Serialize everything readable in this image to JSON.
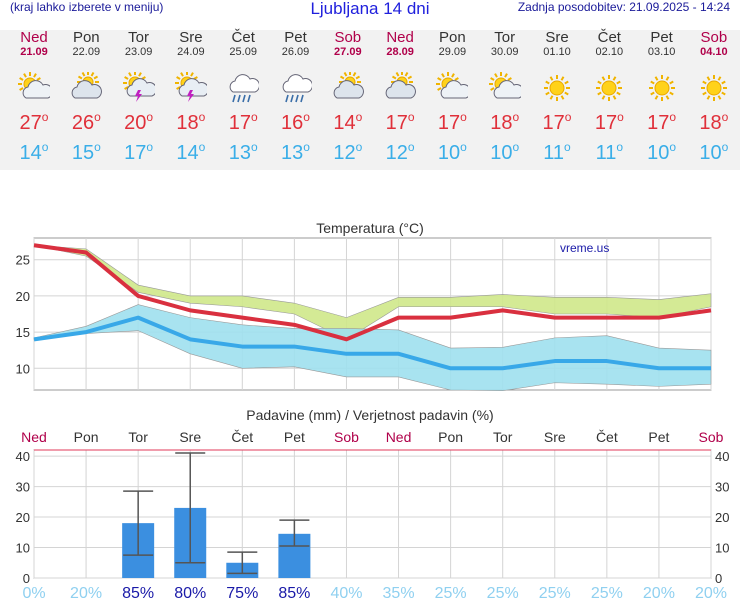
{
  "header": {
    "note": "(kraj lahko izberete v meniju)",
    "title": "Ljubljana 14 dni",
    "updated": "Zadnja posodobitev: 21.09.2025 - 14:24"
  },
  "days": [
    {
      "name": "Ned",
      "date": "21.09",
      "icon": "partly-cloudy-icon",
      "tmax": "27",
      "tmin": "14",
      "weekend": true
    },
    {
      "name": "Pon",
      "date": "22.09",
      "icon": "cloudy-sun-icon",
      "tmax": "26",
      "tmin": "15",
      "weekend": false
    },
    {
      "name": "Tor",
      "date": "23.09",
      "icon": "thunderstorm-sun-icon",
      "tmax": "20",
      "tmin": "17",
      "weekend": false
    },
    {
      "name": "Sre",
      "date": "24.09",
      "icon": "thunderstorm-sun-icon",
      "tmax": "18",
      "tmin": "14",
      "weekend": false
    },
    {
      "name": "Čet",
      "date": "25.09",
      "icon": "rain-cloud-icon",
      "tmax": "17",
      "tmin": "13",
      "weekend": false
    },
    {
      "name": "Pet",
      "date": "26.09",
      "icon": "rain-cloud-icon",
      "tmax": "16",
      "tmin": "13",
      "weekend": false
    },
    {
      "name": "Sob",
      "date": "27.09",
      "icon": "cloudy-sun-icon",
      "tmax": "14",
      "tmin": "12",
      "weekend": true
    },
    {
      "name": "Ned",
      "date": "28.09",
      "icon": "cloudy-sun-icon",
      "tmax": "17",
      "tmin": "12",
      "weekend": true
    },
    {
      "name": "Pon",
      "date": "29.09",
      "icon": "partly-cloudy-icon",
      "tmax": "17",
      "tmin": "10",
      "weekend": false
    },
    {
      "name": "Tor",
      "date": "30.09",
      "icon": "partly-cloudy-icon",
      "tmax": "18",
      "tmin": "10",
      "weekend": false
    },
    {
      "name": "Sre",
      "date": "01.10",
      "icon": "sun-icon",
      "tmax": "17",
      "tmin": "11",
      "weekend": false
    },
    {
      "name": "Čet",
      "date": "02.10",
      "icon": "sun-icon",
      "tmax": "17",
      "tmin": "11",
      "weekend": false
    },
    {
      "name": "Pet",
      "date": "03.10",
      "icon": "sun-icon",
      "tmax": "17",
      "tmin": "10",
      "weekend": false
    },
    {
      "name": "Sob",
      "date": "04.10",
      "icon": "sun-icon",
      "tmax": "18",
      "tmin": "10",
      "weekend": true
    }
  ],
  "colors": {
    "max_line": "#d9303f",
    "min_line": "#38a8e8",
    "max_band": "#cfe88a",
    "min_band": "#9fe0ee",
    "overlap_band": "#7fcf7a",
    "precip_bar": "#3b8fe0",
    "weekend": "#b0004a",
    "prob_strong": "#1a1aa8",
    "prob_weak": "#8fd0f0"
  },
  "chart_data": [
    {
      "type": "line",
      "title": "Temperatura (°C)",
      "watermark": "vreme.us",
      "categories": [
        "21.09",
        "22.09",
        "23.09",
        "24.09",
        "25.09",
        "26.09",
        "27.09",
        "28.09",
        "29.09",
        "30.09",
        "01.10",
        "02.10",
        "03.10",
        "04.10"
      ],
      "ylim": [
        7,
        28
      ],
      "yticks": [
        10,
        15,
        20,
        25
      ],
      "grid": true,
      "series": [
        {
          "values": [
            27,
            26,
            20,
            18,
            17,
            16,
            14,
            17,
            17,
            18,
            17,
            17,
            17,
            18
          ],
          "band_low": [
            27,
            25.5,
            20.5,
            19,
            18.5,
            17.5,
            14,
            18.5,
            18.5,
            18.5,
            17.5,
            17.5,
            17,
            18.5
          ],
          "band_high": [
            27,
            26.5,
            21.5,
            20,
            20,
            19,
            17,
            19.8,
            19.8,
            20.2,
            19.8,
            19.8,
            19.5,
            20.3
          ]
        },
        {
          "values": [
            14,
            15,
            17,
            14,
            13,
            13,
            12,
            12,
            10,
            10,
            11,
            11,
            10,
            10
          ],
          "band_low": [
            14,
            14.8,
            15.2,
            12,
            10,
            10.2,
            8.8,
            8.8,
            7,
            6.9,
            8,
            7.8,
            7.5,
            7.8
          ],
          "band_high": [
            14.2,
            15.8,
            18.8,
            17,
            16,
            15.5,
            15.5,
            15.3,
            12.8,
            12.9,
            14.2,
            14.5,
            12.8,
            12.5
          ]
        }
      ]
    },
    {
      "type": "bar",
      "title": "Padavine (mm) / Verjetnost padavin (%)",
      "categories": [
        "Ned",
        "Pon",
        "Tor",
        "Sre",
        "Čet",
        "Pet",
        "Sob",
        "Ned",
        "Pon",
        "Tor",
        "Sre",
        "Čet",
        "Pet",
        "Sob"
      ],
      "weekend": [
        true,
        false,
        false,
        false,
        false,
        false,
        true,
        true,
        false,
        false,
        false,
        false,
        false,
        true
      ],
      "values": [
        0,
        0,
        18,
        23,
        5,
        14.5,
        0,
        0,
        0,
        0,
        0,
        0,
        0,
        0
      ],
      "err_low": [
        null,
        null,
        7.5,
        5,
        1.5,
        10.5,
        null,
        null,
        null,
        null,
        null,
        null,
        null,
        null
      ],
      "err_high": [
        null,
        null,
        28.5,
        41,
        8.5,
        19,
        null,
        null,
        null,
        null,
        null,
        null,
        null,
        null
      ],
      "probability": [
        "0%",
        "20%",
        "85%",
        "80%",
        "75%",
        "85%",
        "40%",
        "35%",
        "25%",
        "25%",
        "25%",
        "25%",
        "20%",
        "20%"
      ],
      "ylim": [
        0,
        42
      ],
      "yticks": [
        0,
        10,
        20,
        30,
        40
      ],
      "grid": true
    }
  ]
}
